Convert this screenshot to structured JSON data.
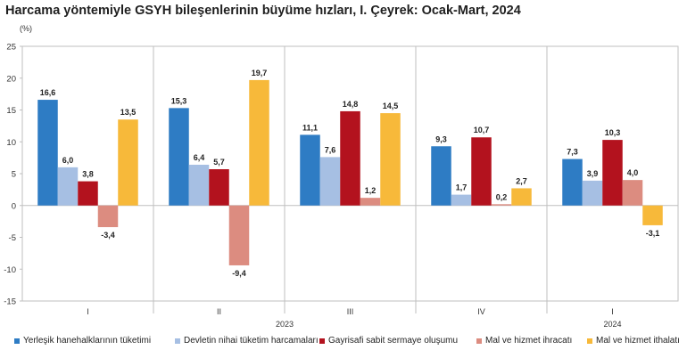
{
  "title": "Harcama yöntemiyle GSYH bileşenlerinin büyüme hızları, I. Çeyrek: Ocak-Mart, 2024",
  "chart_data": {
    "type": "bar",
    "unit_label": "(%)",
    "categories": [
      "I",
      "II",
      "III",
      "IV",
      "I"
    ],
    "year_labels": [
      "2023",
      "2024"
    ],
    "ylim": [
      -15,
      25
    ],
    "yticks": [
      -15,
      -10,
      -5,
      0,
      5,
      10,
      15,
      20,
      25
    ],
    "ytick_labels": [
      "-15",
      "-10",
      "-5",
      "0",
      "5",
      "10",
      "15",
      "20",
      "25"
    ],
    "grid": false,
    "legend_position": "bottom",
    "series": [
      {
        "name": "Yerleşik hanehalklarının tüketimi",
        "color": "#2e7cc4",
        "values": [
          16.6,
          15.3,
          11.1,
          9.3,
          7.3
        ],
        "labels": [
          "16,6",
          "15,3",
          "11,1",
          "9,3",
          "7,3"
        ]
      },
      {
        "name": "Devletin nihai tüketim harcamaları",
        "color": "#a6bfe3",
        "values": [
          6.0,
          6.4,
          7.6,
          1.7,
          3.9
        ],
        "labels": [
          "6,0",
          "6,4",
          "7,6",
          "1,7",
          "3,9"
        ]
      },
      {
        "name": "Gayrisafi sabit sermaye oluşumu",
        "color": "#b3121e",
        "values": [
          3.8,
          5.7,
          14.8,
          10.7,
          10.3
        ],
        "labels": [
          "3,8",
          "5,7",
          "14,8",
          "10,7",
          "10,3"
        ]
      },
      {
        "name": "Mal ve hizmet ihracatı",
        "color": "#dc8c80",
        "values": [
          -3.4,
          -9.4,
          1.2,
          0.2,
          4.0
        ],
        "labels": [
          "-3,4",
          "-9,4",
          "1,2",
          "0,2",
          "4,0"
        ]
      },
      {
        "name": "Mal ve hizmet ithalatı",
        "color": "#f7b93a",
        "values": [
          13.5,
          19.7,
          14.5,
          2.7,
          -3.1
        ],
        "labels": [
          "13,5",
          "19,7",
          "14,5",
          "2,7",
          "-3,1"
        ]
      }
    ]
  }
}
